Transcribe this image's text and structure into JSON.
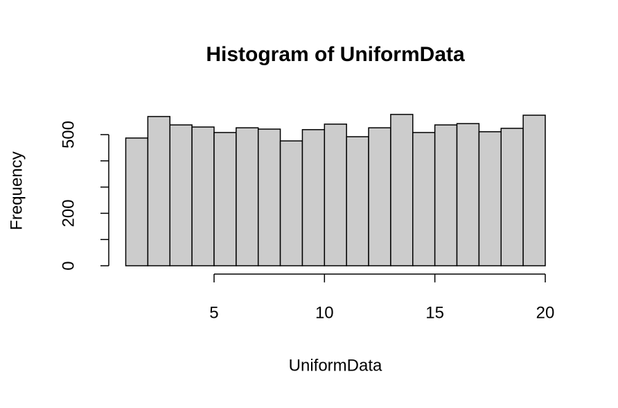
{
  "chart_data": {
    "type": "histogram",
    "title": "Histogram of UniformData",
    "x_label": "UniformData",
    "y_label": "Frequency",
    "bins": [
      1,
      2,
      3,
      4,
      5,
      6,
      7,
      8,
      9,
      10,
      11,
      12,
      13,
      14,
      15,
      16,
      17,
      18,
      19,
      20
    ],
    "values": [
      487,
      569,
      537,
      529,
      508,
      526,
      521,
      476,
      519,
      540,
      492,
      526,
      577,
      508,
      537,
      542,
      511,
      524,
      574
    ],
    "color": "#cccccc",
    "xlim": [
      1,
      20
    ],
    "xticks": [
      5,
      10,
      15,
      20
    ],
    "ylim": [
      0,
      577
    ],
    "yticks": [
      0,
      {
        "value": 100,
        "label": null
      },
      200,
      {
        "value": 300,
        "label": null
      },
      {
        "value": 400,
        "label": null
      },
      500
    ]
  }
}
